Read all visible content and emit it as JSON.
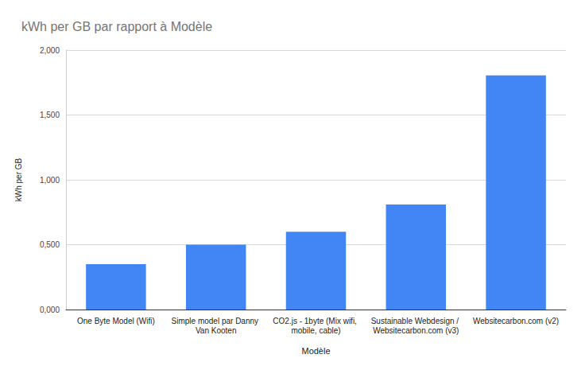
{
  "chart_data": {
    "type": "bar",
    "title": "kWh per GB par rapport à Modèle",
    "x_label": "Modèle",
    "y_label": "kWh per GB",
    "categories": [
      "One Byte Model (Wifi)",
      "Simple model par Danny Van Kooten",
      "CO2.js - 1byte (Mix wifi, mobile, cable)",
      "Sustainable Webdesign / Websitecarbon.com (v3)",
      "Websitecarbon.com (v2)"
    ],
    "values": [
      0.35,
      0.5,
      0.6,
      0.81,
      1.805
    ],
    "color": "#4285f4",
    "ylim": [
      0,
      2
    ],
    "yticks": [
      {
        "value": 0,
        "label": "0,000"
      },
      {
        "value": 0.5,
        "label": "0,500"
      },
      {
        "value": 1,
        "label": "1,000"
      },
      {
        "value": 1.5,
        "label": "1,500"
      },
      {
        "value": 2,
        "label": "2,000"
      }
    ],
    "grid": true
  }
}
